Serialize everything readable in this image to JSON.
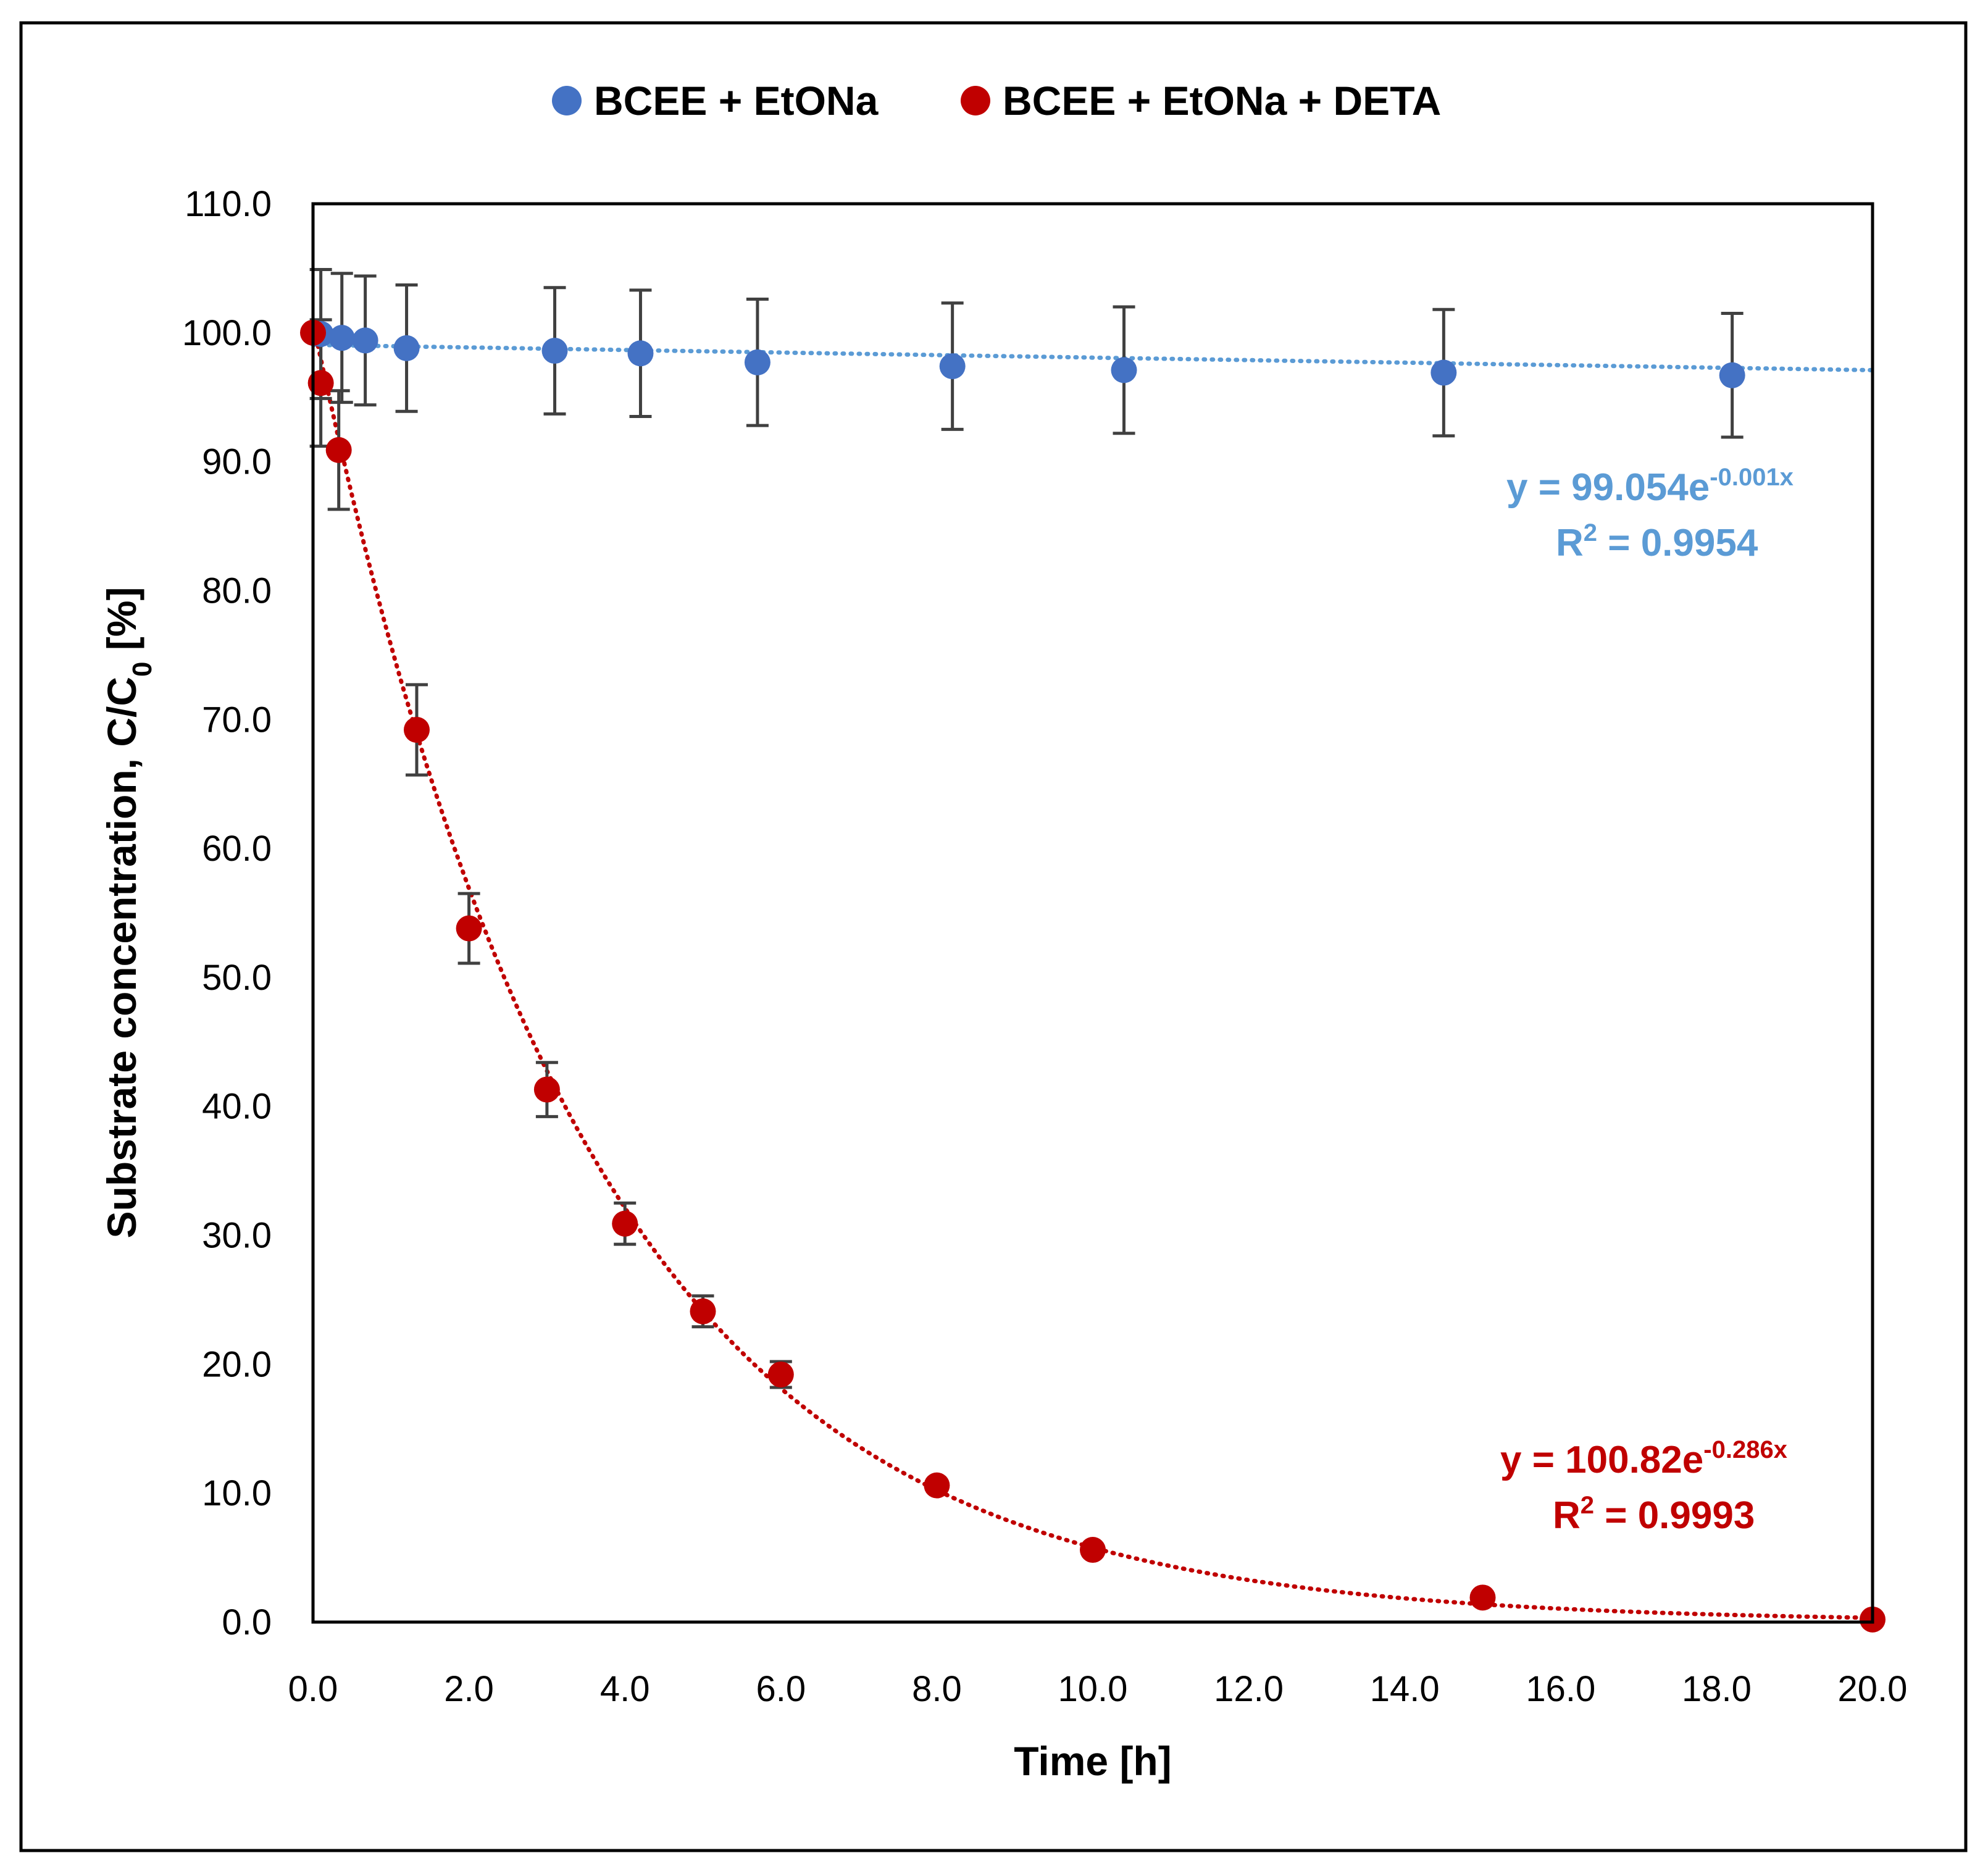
{
  "chart_data": {
    "type": "scatter",
    "title": "",
    "xlabel": "Time [h]",
    "ylabel_main": "Substrate concentration, C/C",
    "ylabel_sub": "0",
    "ylabel_tail": " [%]",
    "xlim": [
      0,
      20
    ],
    "ylim": [
      0,
      110
    ],
    "x_ticks": [
      "0.0",
      "2.0",
      "4.0",
      "6.0",
      "8.0",
      "10.0",
      "12.0",
      "14.0",
      "16.0",
      "18.0",
      "20.0"
    ],
    "y_ticks": [
      "0.0",
      "10.0",
      "20.0",
      "30.0",
      "40.0",
      "50.0",
      "60.0",
      "70.0",
      "80.0",
      "90.0",
      "100.0",
      "110.0"
    ],
    "legend_position": "top-center",
    "series": [
      {
        "name": "BCEE + EtONa",
        "color": "#4472c4",
        "trend_color": "#5b9bd5",
        "x": [
          0.1,
          0.37,
          0.67,
          1.2,
          3.1,
          4.2,
          5.7,
          8.2,
          10.4,
          14.5,
          18.2
        ],
        "y": [
          99.9,
          99.6,
          99.4,
          98.8,
          98.6,
          98.4,
          97.7,
          97.4,
          97.1,
          96.9,
          96.7
        ],
        "err": [
          5.0,
          5.0,
          5.0,
          4.9,
          4.9,
          4.9,
          4.9,
          4.9,
          4.9,
          4.9,
          4.8
        ],
        "fit": {
          "a": 99.054,
          "k": -0.001
        },
        "equation_main": "y = 99.054e",
        "equation_exp": "-0.001x",
        "r2_main": "R",
        "r2_sup": "2",
        "r2_tail": " = 0.9954"
      },
      {
        "name": "BCEE + EtONa + DETA",
        "color": "#c00000",
        "trend_color": "#c00000",
        "x": [
          0.0,
          0.1,
          0.33,
          1.33,
          2.0,
          3.0,
          4.0,
          5.0,
          6.0,
          8.0,
          10.0,
          15.0,
          20.0
        ],
        "y": [
          100.0,
          96.1,
          90.9,
          69.2,
          53.8,
          41.3,
          30.9,
          24.1,
          19.2,
          10.6,
          5.6,
          1.9,
          0.2
        ],
        "err": [
          0,
          4.9,
          4.6,
          3.5,
          2.7,
          2.1,
          1.6,
          1.2,
          1.0,
          0,
          0,
          0,
          0
        ],
        "fit": {
          "a": 100.82,
          "k": -0.286
        },
        "equation_main": "y = 100.82e",
        "equation_exp": "-0.286x",
        "r2_main": "R",
        "r2_sup": "2",
        "r2_tail": " = 0.9993"
      }
    ]
  }
}
